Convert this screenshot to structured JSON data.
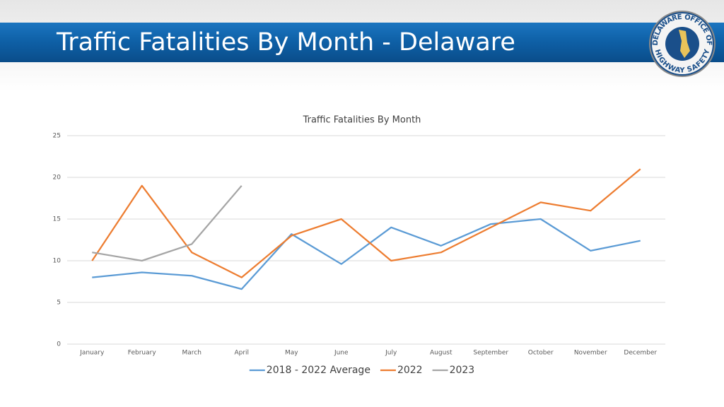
{
  "header": {
    "title": "Traffic Fatalities By Month - Delaware",
    "logo_top": "DELAWARE OFFICE OF",
    "logo_bottom": "HIGHWAY SAFETY"
  },
  "chart_data": {
    "type": "line",
    "title": "Traffic Fatalities By Month",
    "categories": [
      "January",
      "February",
      "March",
      "April",
      "May",
      "June",
      "July",
      "August",
      "September",
      "October",
      "November",
      "December"
    ],
    "series": [
      {
        "name": "2018 - 2022 Average",
        "color": "#5b9bd5",
        "values": [
          8,
          8.6,
          8.2,
          6.6,
          13.2,
          9.6,
          14,
          11.8,
          14.4,
          15,
          11.2,
          12.4
        ]
      },
      {
        "name": "2022",
        "color": "#ed7d31",
        "values": [
          10,
          19,
          11,
          8,
          13,
          15,
          10,
          11,
          14,
          17,
          16,
          21
        ]
      },
      {
        "name": "2023",
        "color": "#a5a5a5",
        "values": [
          11,
          10,
          12,
          19,
          null,
          null,
          null,
          null,
          null,
          null,
          null,
          null
        ]
      }
    ],
    "ylim": [
      0,
      25
    ],
    "yticks": [
      0,
      5,
      10,
      15,
      20,
      25
    ],
    "grid": true,
    "legend": "bottom"
  }
}
